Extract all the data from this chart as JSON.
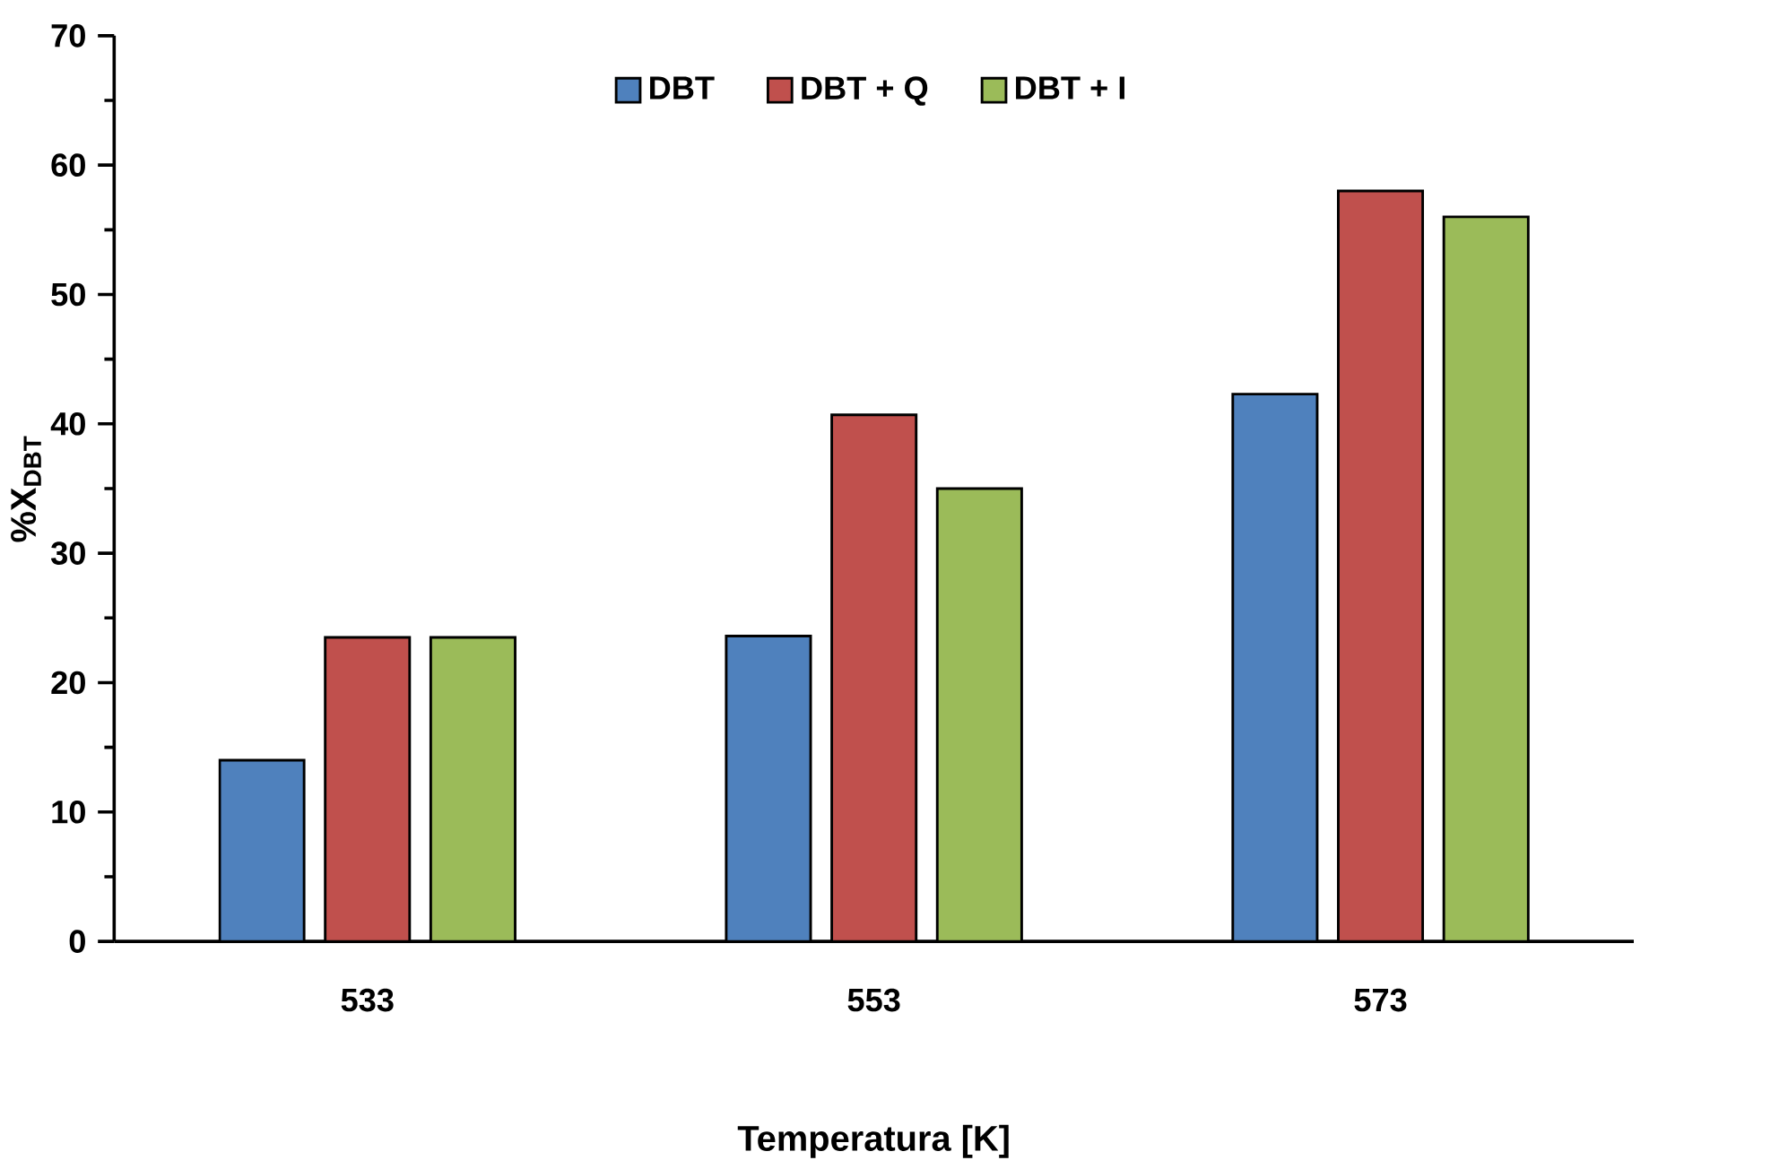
{
  "chart_data": {
    "type": "bar",
    "xlabel": "Temperatura [K]",
    "ylabel": "%X$_{DBT}$",
    "categories": [
      "533",
      "553",
      "573"
    ],
    "series": [
      {
        "name": "DBT",
        "color": "#4f81bd",
        "values": [
          14.0,
          23.6,
          42.3
        ]
      },
      {
        "name": "DBT + Q",
        "color": "#c0504d",
        "values": [
          23.5,
          40.7,
          58.0
        ]
      },
      {
        "name": "DBT + I",
        "color": "#9bbb59",
        "values": [
          23.5,
          35.0,
          56.0
        ]
      }
    ],
    "ylim": [
      0,
      70
    ],
    "yticks": [
      0,
      10,
      20,
      30,
      40,
      50,
      60,
      70
    ],
    "legend": "top",
    "grid": false
  }
}
